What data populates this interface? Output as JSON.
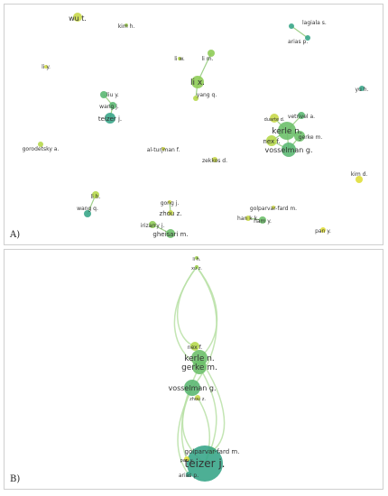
{
  "panel_a": {
    "label": "A)",
    "nodes": [
      {
        "label": "wu t.",
        "color": "#c8d84a"
      },
      {
        "label": "kim h.",
        "color": "#9fcf50"
      },
      {
        "label": "lagiala s.",
        "color": "#3aa68a"
      },
      {
        "label": "arias p.",
        "color": "#3aa68a"
      },
      {
        "label": "li y.",
        "color": "#d2dc46"
      },
      {
        "label": "li w.",
        "color": "#b6d84c"
      },
      {
        "label": "li m.",
        "color": "#8fcc58"
      },
      {
        "label": "li x.",
        "color": "#8fcc58"
      },
      {
        "label": "yang q.",
        "color": "#b6d84c"
      },
      {
        "label": "yu h.",
        "color": "#3aa68a"
      },
      {
        "label": "liu y.",
        "color": "#5cb873"
      },
      {
        "label": "wang j.",
        "color": "#5cb873"
      },
      {
        "label": "teizer j.",
        "color": "#3aa68a"
      },
      {
        "label": "duarte d.",
        "color": "#c8d84a"
      },
      {
        "label": "vetrivel a.",
        "color": "#5cb873"
      },
      {
        "label": "kerle n.",
        "color": "#6ec06c"
      },
      {
        "label": "nex f.",
        "color": "#b6d84c"
      },
      {
        "label": "gerke m.",
        "color": "#6ec06c"
      },
      {
        "label": "vosselman g.",
        "color": "#5cb873"
      },
      {
        "label": "gorodetsky a.",
        "color": "#b6d84c"
      },
      {
        "label": "al-turjman f.",
        "color": "#d2dc46"
      },
      {
        "label": "zekkos d.",
        "color": "#c8d84a"
      },
      {
        "label": "kim d.",
        "color": "#e0de3a"
      },
      {
        "label": "li h.",
        "color": "#b6d84c"
      },
      {
        "label": "wang q.",
        "color": "#3aa68a"
      },
      {
        "label": "gong j.",
        "color": "#d2dc46"
      },
      {
        "label": "zhou z.",
        "color": "#c8d84a"
      },
      {
        "label": "golparvar-fard m.",
        "color": "#d2dc46"
      },
      {
        "label": "han k k.",
        "color": "#c8d84a"
      },
      {
        "label": "nam y.",
        "color": "#6ec06c"
      },
      {
        "label": "irizarry j.",
        "color": "#8fcc58"
      },
      {
        "label": "gheisari m.",
        "color": "#6ec06c"
      },
      {
        "label": "pan y.",
        "color": "#e0de3a"
      }
    ]
  },
  "panel_b": {
    "label": "B)",
    "nodes": [
      {
        "label": "li h.",
        "color": "#9fcf50"
      },
      {
        "label": "xu z.",
        "color": "#9fcf50"
      },
      {
        "label": "nex f.",
        "color": "#b6d84c"
      },
      {
        "label": "kerle n.",
        "color": "#6ec06c"
      },
      {
        "label": "gerke m.",
        "color": "#6ec06c"
      },
      {
        "label": "vosselman g.",
        "color": "#5cb873"
      },
      {
        "label": "zhou z.",
        "color": "#c8d84a"
      },
      {
        "label": "golparvar-fard m.",
        "color": "#d2dc46"
      },
      {
        "label": "teizer j.",
        "color": "#3aa68a"
      },
      {
        "label": "pan y.",
        "color": "#e0de3a"
      },
      {
        "label": "arias p.",
        "color": "#3aa68a"
      }
    ]
  }
}
